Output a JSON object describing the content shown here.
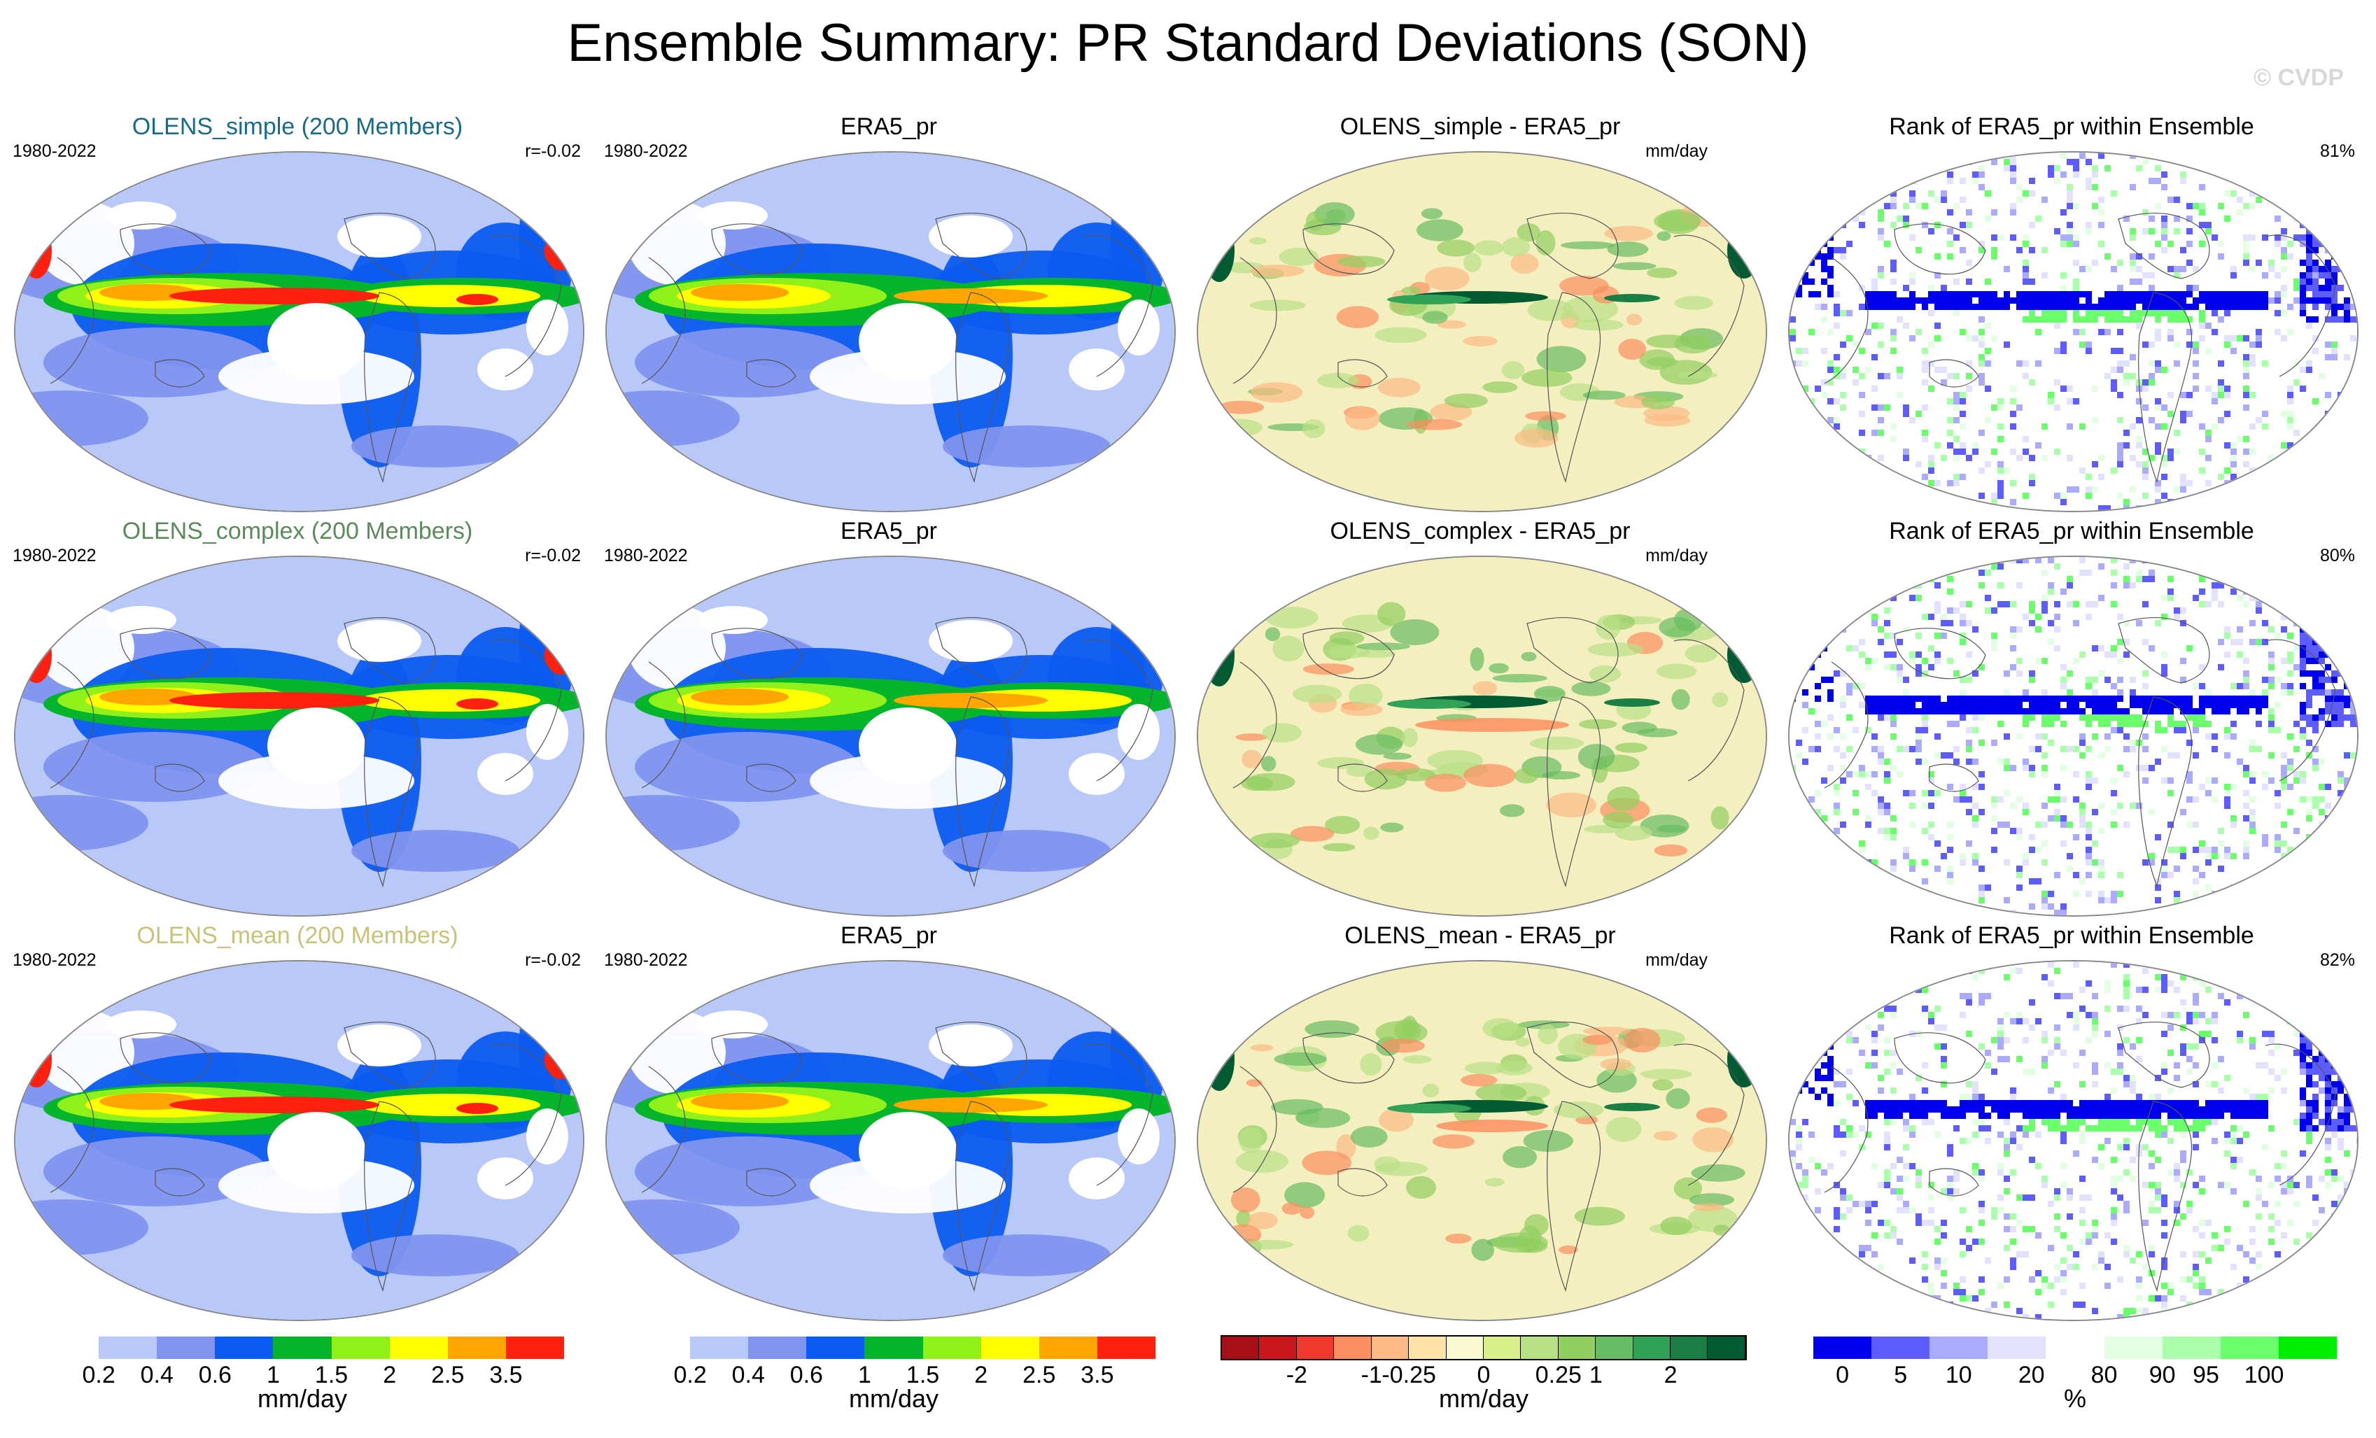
{
  "figure": {
    "title": "Ensemble Summary: PR Standard Deviations (SON)",
    "watermark": "© CVDP"
  },
  "colors": {
    "model_titles": [
      "#1a6a8a",
      "#5b8a5b",
      "#c8c27a"
    ],
    "pr_levels": [
      "#ffffff",
      "#b8c8f8",
      "#7f93ef",
      "#0b5bf0",
      "#04b52c",
      "#8ff01a",
      "#ffff00",
      "#ffa500",
      "#ff2010"
    ],
    "diff_levels": [
      "#a50f15",
      "#cb181d",
      "#ef3b2c",
      "#fb8f5f",
      "#fcbb84",
      "#fde3a7",
      "#fafad2",
      "#d9ef8b",
      "#b8e186",
      "#91cf60",
      "#66bd63",
      "#32a259",
      "#1a7e44",
      "#005a32"
    ],
    "rank_levels": [
      "#0000ee",
      "#5c5cff",
      "#aaaaff",
      "#e2e2ff",
      "#ffffff",
      "#e2ffe2",
      "#aaffaa",
      "#6cff6c",
      "#00ee00"
    ]
  },
  "rows": [
    {
      "model": {
        "title": "OLENS_simple (200 Members)",
        "years": "1980-2022",
        "corr": "r=-0.02"
      },
      "obs": {
        "title": "ERA5_pr",
        "years": "1980-2022"
      },
      "diff": {
        "title": "OLENS_simple - ERA5_pr",
        "units": "mm/day"
      },
      "rank": {
        "title": "Rank of ERA5_pr within Ensemble",
        "pct": "81%"
      }
    },
    {
      "model": {
        "title": "OLENS_complex (200 Members)",
        "years": "1980-2022",
        "corr": "r=-0.02"
      },
      "obs": {
        "title": "ERA5_pr",
        "years": "1980-2022"
      },
      "diff": {
        "title": "OLENS_complex - ERA5_pr",
        "units": "mm/day"
      },
      "rank": {
        "title": "Rank of ERA5_pr within Ensemble",
        "pct": "80%"
      }
    },
    {
      "model": {
        "title": "OLENS_mean (200 Members)",
        "years": "1980-2022",
        "corr": "r=-0.02"
      },
      "obs": {
        "title": "ERA5_pr",
        "years": "1980-2022"
      },
      "diff": {
        "title": "OLENS_mean - ERA5_pr",
        "units": "mm/day"
      },
      "rank": {
        "title": "Rank of ERA5_pr within Ensemble",
        "pct": "82%"
      }
    }
  ],
  "colorbars": [
    {
      "units": "mm/day",
      "labels": [
        "0.2",
        "0.4",
        "0.6",
        "1",
        "1.5",
        "2",
        "2.5",
        "3.5"
      ]
    },
    {
      "units": "mm/day",
      "labels": [
        "0.2",
        "0.4",
        "0.6",
        "1",
        "1.5",
        "2",
        "2.5",
        "3.5"
      ]
    },
    {
      "units": "mm/day",
      "labels": [
        "-2",
        "-1",
        "-0.25",
        "0",
        "0.25",
        "1",
        "2"
      ]
    },
    {
      "units": "%",
      "labels": [
        "0",
        "5",
        "10",
        "20",
        "80",
        "90",
        "95",
        "100"
      ]
    }
  ],
  "chart_data": [
    {
      "type": "heatmap",
      "title": "OLENS_simple (200 Members)",
      "subtitle": "1980-2022",
      "annotation": "r=-0.02",
      "colorbar_units": "mm/day",
      "levels": [
        0.2,
        0.4,
        0.6,
        1,
        1.5,
        2,
        2.5,
        3.5
      ]
    },
    {
      "type": "heatmap",
      "title": "ERA5_pr",
      "subtitle": "1980-2022",
      "colorbar_units": "mm/day",
      "levels": [
        0.2,
        0.4,
        0.6,
        1,
        1.5,
        2,
        2.5,
        3.5
      ]
    },
    {
      "type": "heatmap",
      "title": "OLENS_simple - ERA5_pr",
      "annotation": "mm/day",
      "colorbar_units": "mm/day",
      "levels": [
        -2,
        -1,
        -0.25,
        0,
        0.25,
        1,
        2
      ]
    },
    {
      "type": "heatmap",
      "title": "Rank of ERA5_pr within Ensemble",
      "annotation": "81%",
      "colorbar_units": "%",
      "levels": [
        0,
        5,
        10,
        20,
        80,
        90,
        95,
        100
      ]
    },
    {
      "type": "heatmap",
      "title": "OLENS_complex (200 Members)",
      "subtitle": "1980-2022",
      "annotation": "r=-0.02",
      "colorbar_units": "mm/day",
      "levels": [
        0.2,
        0.4,
        0.6,
        1,
        1.5,
        2,
        2.5,
        3.5
      ]
    },
    {
      "type": "heatmap",
      "title": "ERA5_pr",
      "subtitle": "1980-2022",
      "colorbar_units": "mm/day",
      "levels": [
        0.2,
        0.4,
        0.6,
        1,
        1.5,
        2,
        2.5,
        3.5
      ]
    },
    {
      "type": "heatmap",
      "title": "OLENS_complex - ERA5_pr",
      "annotation": "mm/day",
      "colorbar_units": "mm/day",
      "levels": [
        -2,
        -1,
        -0.25,
        0,
        0.25,
        1,
        2
      ]
    },
    {
      "type": "heatmap",
      "title": "Rank of ERA5_pr within Ensemble",
      "annotation": "80%",
      "colorbar_units": "%",
      "levels": [
        0,
        5,
        10,
        20,
        80,
        90,
        95,
        100
      ]
    },
    {
      "type": "heatmap",
      "title": "OLENS_mean (200 Members)",
      "subtitle": "1980-2022",
      "annotation": "r=-0.02",
      "colorbar_units": "mm/day",
      "levels": [
        0.2,
        0.4,
        0.6,
        1,
        1.5,
        2,
        2.5,
        3.5
      ]
    },
    {
      "type": "heatmap",
      "title": "ERA5_pr",
      "subtitle": "1980-2022",
      "colorbar_units": "mm/day",
      "levels": [
        0.2,
        0.4,
        0.6,
        1,
        1.5,
        2,
        2.5,
        3.5
      ]
    },
    {
      "type": "heatmap",
      "title": "OLENS_mean - ERA5_pr",
      "annotation": "mm/day",
      "colorbar_units": "mm/day",
      "levels": [
        -2,
        -1,
        -0.25,
        0,
        0.25,
        1,
        2
      ]
    },
    {
      "type": "heatmap",
      "title": "Rank of ERA5_pr within Ensemble",
      "annotation": "82%",
      "colorbar_units": "%",
      "levels": [
        0,
        5,
        10,
        20,
        80,
        90,
        95,
        100
      ]
    }
  ]
}
